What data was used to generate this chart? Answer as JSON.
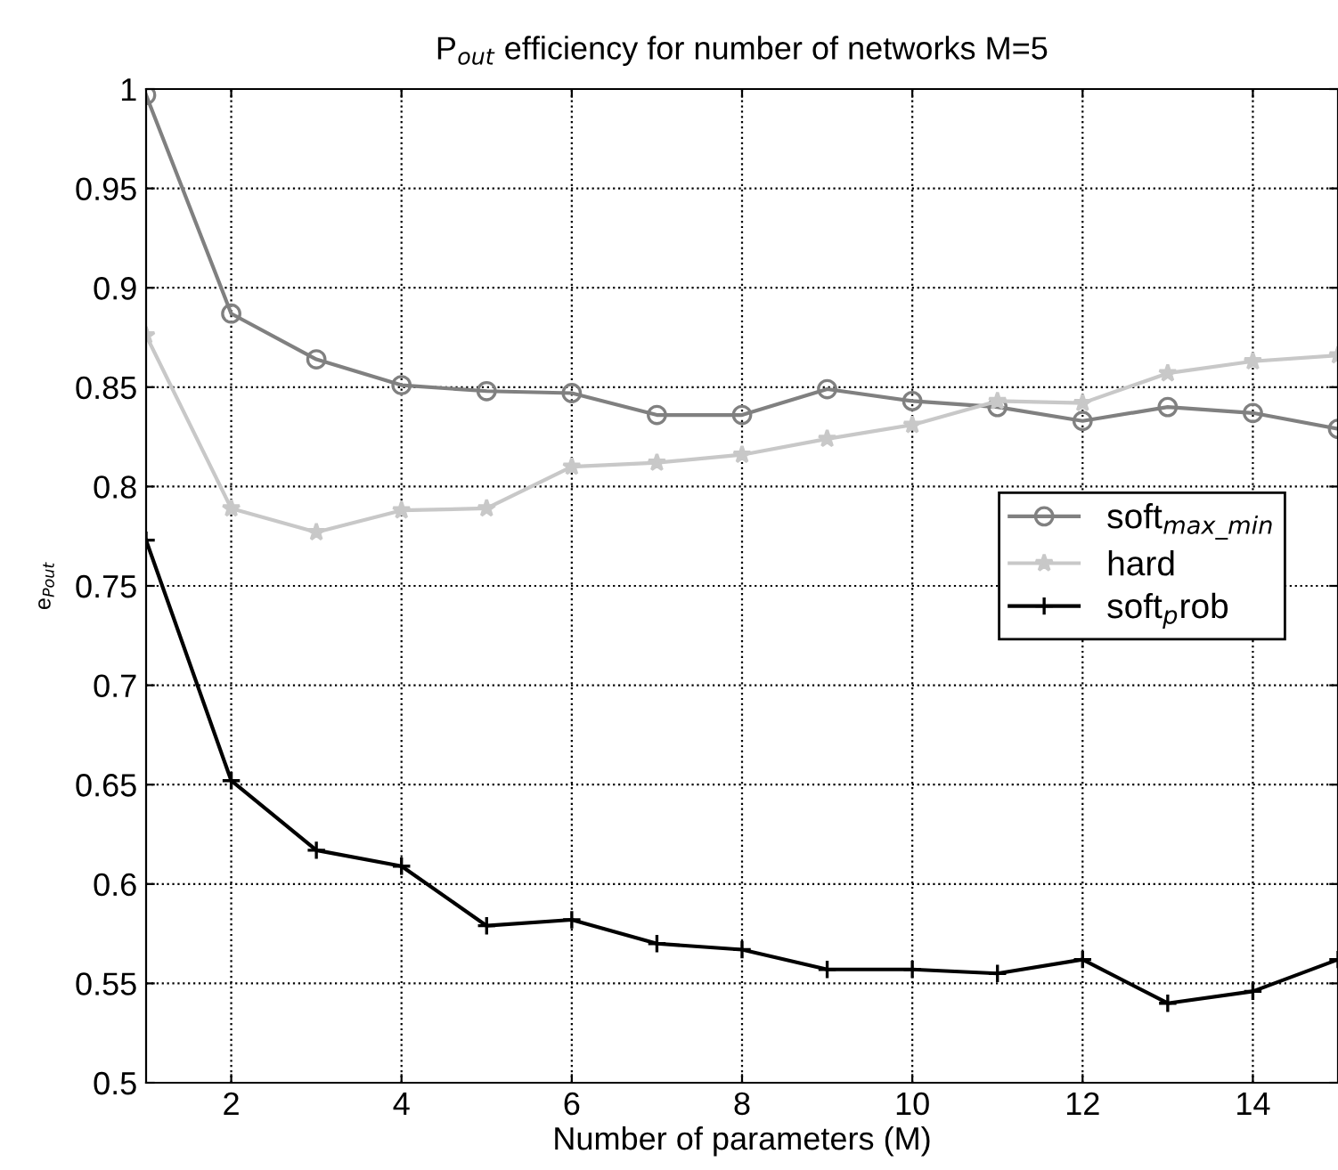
{
  "chart_data": {
    "type": "line",
    "title": "P$_{out}$ efficiency for number of networks M=5",
    "xlabel": "Number of parameters (M)",
    "ylabel": "e$_{Pout}$",
    "x": [
      1,
      2,
      3,
      4,
      5,
      6,
      7,
      8,
      9,
      10,
      11,
      12,
      13,
      14,
      15
    ],
    "series": [
      {
        "name": "soft$_{max_min}$",
        "color": "#808080",
        "marker": "circle",
        "values": [
          0.997,
          0.887,
          0.864,
          0.851,
          0.848,
          0.847,
          0.836,
          0.836,
          0.849,
          0.843,
          0.84,
          0.833,
          0.84,
          0.837,
          0.829
        ]
      },
      {
        "name": "hard",
        "color": "#c8c8c8",
        "marker": "star",
        "values": [
          0.876,
          0.789,
          0.777,
          0.788,
          0.789,
          0.81,
          0.812,
          0.816,
          0.824,
          0.831,
          0.843,
          0.842,
          0.857,
          0.863,
          0.866
        ]
      },
      {
        "name": "soft$_{p}$rob",
        "color": "#000000",
        "marker": "cross",
        "values": [
          0.773,
          0.652,
          0.617,
          0.609,
          0.579,
          0.582,
          0.57,
          0.567,
          0.557,
          0.557,
          0.555,
          0.562,
          0.54,
          0.546,
          0.562
        ]
      }
    ],
    "xlim": [
      1,
      15
    ],
    "xticks": [
      2,
      4,
      6,
      8,
      10,
      12,
      14
    ],
    "ylim": [
      0.5,
      1
    ],
    "yticks": [
      0.5,
      0.55,
      0.6,
      0.65,
      0.7,
      0.75,
      0.8,
      0.85,
      0.9,
      0.95,
      1
    ],
    "grid": true,
    "legend": "right",
    "line_style": "solid"
  }
}
